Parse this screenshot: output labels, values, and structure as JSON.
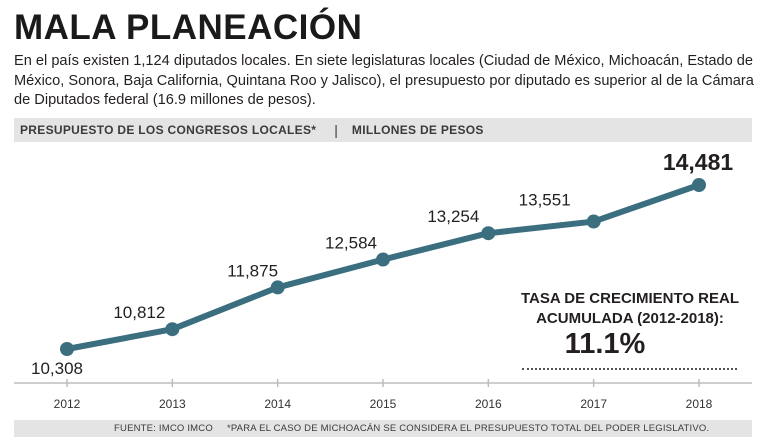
{
  "header": {
    "title": "MALA PLANEACIÓN",
    "intro": "En el país existen 1,124 diputados locales. En siete legislaturas locales (Ciudad de México, Michoacán, Estado de México, Sonora, Baja California, Quintana Roo y Jalisco), el presupuesto por diputado es superior al de la Cámara de Diputados federal (16.9 millones de pesos)."
  },
  "subtitle": {
    "left": "PRESUPUESTO DE LOS CONGRESOS LOCALES*",
    "separator": "|",
    "right": "MILLONES DE PESOS"
  },
  "growth": {
    "label_line1": "TASA DE CRECIMIENTO REAL",
    "label_line2": "ACUMULADA (2012-2018):",
    "value": "11.1%"
  },
  "footer": {
    "source": "FUENTE: IMCO IMCO",
    "note": "*PARA EL CASO DE MICHOACÁN SE CONSIDERA EL PRESUPUESTO TOTAL DEL PODER LEGISLATIVO."
  },
  "colors": {
    "line": "#3b6f80",
    "axis": "#bdbdbd",
    "text": "#231f20"
  },
  "chart_data": {
    "type": "line",
    "title": "PRESUPUESTO DE LOS CONGRESOS LOCALES*",
    "ylabel": "MILLONES DE PESOS",
    "xlabel": "",
    "categories": [
      "2012",
      "2013",
      "2014",
      "2015",
      "2016",
      "2017",
      "2018"
    ],
    "values": [
      10308,
      10812,
      11875,
      12584,
      13254,
      13551,
      14481
    ],
    "labels": [
      "10,308",
      "10,812",
      "11,875",
      "12,584",
      "13,254",
      "13,551",
      "14,481"
    ],
    "ylim": [
      9600,
      14800
    ],
    "grid": false
  }
}
